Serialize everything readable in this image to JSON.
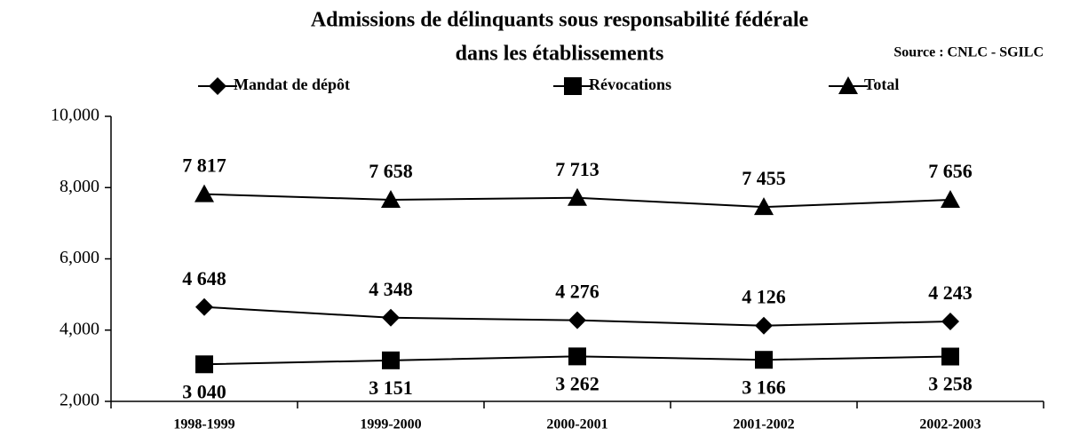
{
  "chart_data": {
    "type": "line",
    "title": "Admissions de délinquants sous responsabilité fédérale",
    "subtitle": "dans les établissements",
    "source": "Source : CNLC - SGILC",
    "categories": [
      "1998-1999",
      "1999-2000",
      "2000-2001",
      "2001-2002",
      "2002-2003"
    ],
    "series": [
      {
        "name": "Mandat de dépôt",
        "color": "#000000",
        "marker": "diamond",
        "label_position": "above",
        "values": [
          4648,
          4348,
          4276,
          4126,
          4243
        ],
        "value_labels": [
          "4 648",
          "4 348",
          "4 276",
          "4 126",
          "4 243"
        ]
      },
      {
        "name": "Révocations",
        "color": "#000000",
        "marker": "square",
        "label_position": "below",
        "values": [
          3040,
          3151,
          3262,
          3166,
          3258
        ],
        "value_labels": [
          "3 040",
          "3 151",
          "3 262",
          "3 166",
          "3 258"
        ]
      },
      {
        "name": "Total",
        "color": "#000000",
        "marker": "triangle",
        "label_position": "above",
        "values": [
          7817,
          7658,
          7713,
          7455,
          7656
        ],
        "value_labels": [
          "7 817",
          "7 658",
          "7 713",
          "7 455",
          "7 656"
        ]
      }
    ],
    "ylim": [
      2000,
      10000
    ],
    "yticks": [
      {
        "value": 2000,
        "label": "2,000"
      },
      {
        "value": 4000,
        "label": "4,000"
      },
      {
        "value": 6000,
        "label": "6,000"
      },
      {
        "value": 8000,
        "label": "8,000"
      },
      {
        "value": 10000,
        "label": "10,000"
      }
    ],
    "legend": "top"
  }
}
